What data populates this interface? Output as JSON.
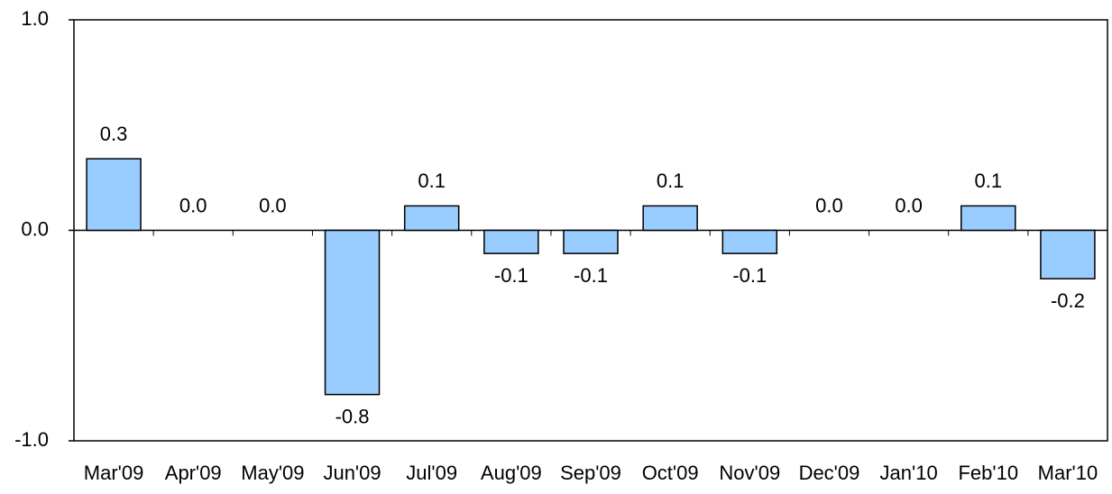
{
  "chart_data": {
    "type": "bar",
    "categories": [
      "Mar'09",
      "Apr'09",
      "May'09",
      "Jun'09",
      "Jul'09",
      "Aug'09",
      "Sep'09",
      "Oct'09",
      "Nov'09",
      "Dec'09",
      "Jan'10",
      "Feb'10",
      "Mar'10"
    ],
    "values": [
      0.34,
      0,
      0,
      -0.78,
      0.116,
      -0.11,
      -0.11,
      0.116,
      -0.11,
      0,
      0,
      0.116,
      -0.23
    ],
    "value_labels": [
      "0.3",
      "0.0",
      "0.0",
      "-0.8",
      "0.1",
      "-0.1",
      "-0.1",
      "0.1",
      "-0.1",
      "0.0",
      "0.0",
      "0.1",
      "-0.2"
    ],
    "color": "#99ccff",
    "ylim": [
      -1,
      1
    ],
    "yticks": [
      {
        "value": -1,
        "label": "-1.0"
      },
      {
        "value": 0,
        "label": "0.0"
      },
      {
        "value": 1,
        "label": "1.0"
      }
    ]
  }
}
